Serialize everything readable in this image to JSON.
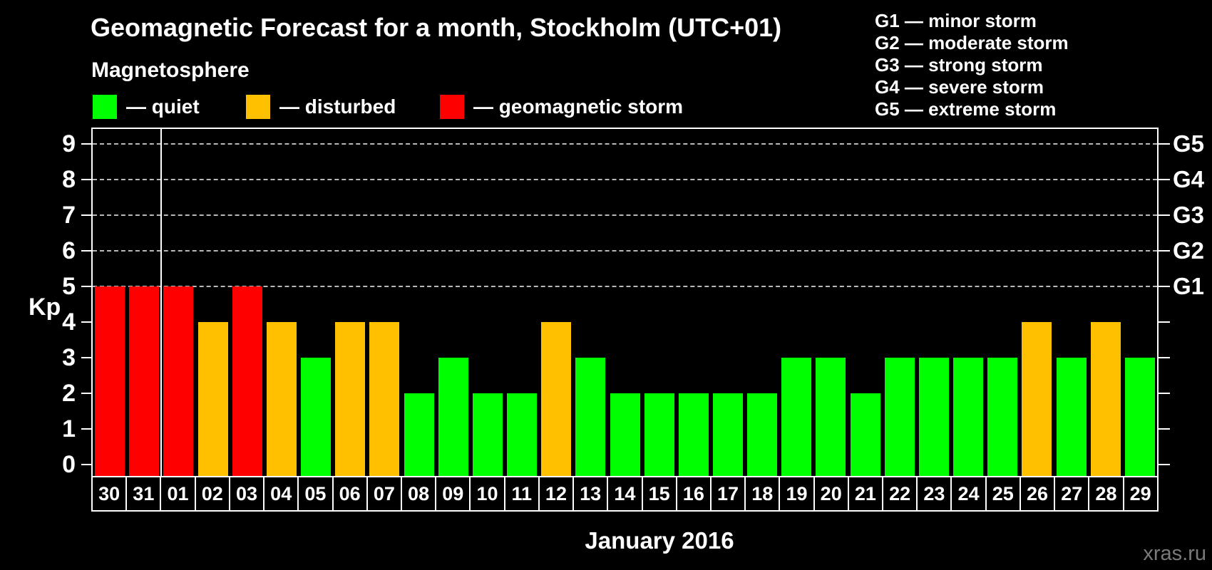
{
  "title": "Geomagnetic Forecast for a month, Stockholm (UTC+01)",
  "subtitle": "Magnetosphere",
  "legend": {
    "items": [
      {
        "label": "— quiet",
        "status": "quiet"
      },
      {
        "label": "— disturbed",
        "status": "disturbed"
      },
      {
        "label": "— geomagnetic storm",
        "status": "storm"
      }
    ]
  },
  "status_colors": {
    "quiet": "#00ff00",
    "disturbed": "#ffc000",
    "storm": "#ff0000"
  },
  "storm_scale_legend": [
    "G1 — minor storm",
    "G2 — moderate storm",
    "G3 — strong storm",
    "G4 — severe storm",
    "G5 — extreme storm"
  ],
  "watermark": "xras.ru",
  "chart_data": {
    "type": "bar",
    "title": "Geomagnetic Forecast for a month, Stockholm (UTC+01)",
    "xlabel": "January 2016",
    "ylabel": "Kp",
    "ylim": [
      0,
      9
    ],
    "yticks": [
      0,
      1,
      2,
      3,
      4,
      5,
      6,
      7,
      8,
      9
    ],
    "gridlines_kp": [
      5,
      6,
      7,
      8,
      9
    ],
    "grid": "dashed horizontal at Kp 5-9 only",
    "right_axis": [
      {
        "label": "G1",
        "kp": 5
      },
      {
        "label": "G2",
        "kp": 6
      },
      {
        "label": "G3",
        "kp": 7
      },
      {
        "label": "G4",
        "kp": 8
      },
      {
        "label": "G5",
        "kp": 9
      }
    ],
    "categories": [
      "30",
      "31",
      "01",
      "02",
      "03",
      "04",
      "05",
      "06",
      "07",
      "08",
      "09",
      "10",
      "11",
      "12",
      "13",
      "14",
      "15",
      "16",
      "17",
      "18",
      "19",
      "20",
      "21",
      "22",
      "23",
      "24",
      "25",
      "26",
      "27",
      "28",
      "29"
    ],
    "values": [
      5,
      5,
      5,
      4,
      5,
      4,
      3,
      4,
      4,
      2,
      3,
      2,
      2,
      4,
      3,
      2,
      2,
      2,
      2,
      2,
      3,
      3,
      2,
      3,
      3,
      3,
      3,
      4,
      3,
      4,
      3
    ],
    "statuses": [
      "storm",
      "storm",
      "storm",
      "disturbed",
      "storm",
      "disturbed",
      "quiet",
      "disturbed",
      "disturbed",
      "quiet",
      "quiet",
      "quiet",
      "quiet",
      "disturbed",
      "quiet",
      "quiet",
      "quiet",
      "quiet",
      "quiet",
      "quiet",
      "quiet",
      "quiet",
      "quiet",
      "quiet",
      "quiet",
      "quiet",
      "quiet",
      "disturbed",
      "quiet",
      "disturbed",
      "quiet"
    ],
    "separator_between": [
      "31",
      "01"
    ]
  }
}
